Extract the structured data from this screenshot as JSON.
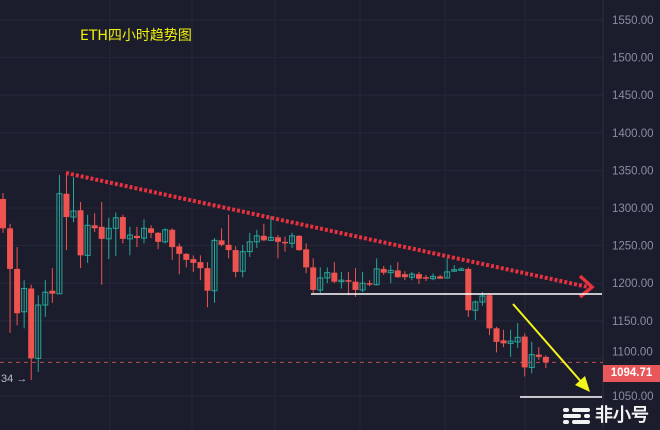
{
  "chart_data": {
    "type": "candlestick",
    "title": "ETH四小时趋势图",
    "ylim": [
      1030,
      1575
    ],
    "y_ticks": [
      "1050.00",
      "1100.00",
      "1150.00",
      "1200.00",
      "1250.00",
      "1300.00",
      "1350.00",
      "1400.00",
      "1450.00",
      "1500.00",
      "1550.00"
    ],
    "last_price": "1094.71",
    "left_label": ".34 →",
    "grid": true,
    "colors": {
      "up": "#26a69a",
      "down": "#ef5350",
      "background": "#1b1d2d",
      "trendline": "#e8313f",
      "arrow": "#f5f51a",
      "support": "#ffffff"
    },
    "candles": [
      [
        1312,
        1320,
        1267,
        1273
      ],
      [
        1273,
        1279,
        1134,
        1219
      ],
      [
        1219,
        1248,
        1144,
        1160
      ],
      [
        1162,
        1204,
        1140,
        1193
      ],
      [
        1193,
        1198,
        1071,
        1100
      ],
      [
        1100,
        1184,
        1082,
        1171
      ],
      [
        1171,
        1204,
        1155,
        1188
      ],
      [
        1190,
        1220,
        1174,
        1186
      ],
      [
        1186,
        1344,
        1186,
        1319
      ],
      [
        1319,
        1348,
        1244,
        1288
      ],
      [
        1288,
        1341,
        1281,
        1296
      ],
      [
        1297,
        1308,
        1220,
        1237
      ],
      [
        1237,
        1291,
        1227,
        1277
      ],
      [
        1277,
        1293,
        1268,
        1273
      ],
      [
        1275,
        1308,
        1198,
        1259
      ],
      [
        1259,
        1287,
        1232,
        1273
      ],
      [
        1273,
        1294,
        1236,
        1287
      ],
      [
        1288,
        1291,
        1253,
        1259
      ],
      [
        1259,
        1275,
        1237,
        1264
      ],
      [
        1263,
        1275,
        1248,
        1260
      ],
      [
        1260,
        1285,
        1253,
        1273
      ],
      [
        1273,
        1277,
        1260,
        1267
      ],
      [
        1267,
        1268,
        1245,
        1255
      ],
      [
        1255,
        1273,
        1253,
        1271
      ],
      [
        1271,
        1273,
        1231,
        1248
      ],
      [
        1249,
        1253,
        1212,
        1239
      ],
      [
        1239,
        1240,
        1221,
        1231
      ],
      [
        1232,
        1237,
        1215,
        1227
      ],
      [
        1228,
        1237,
        1204,
        1220
      ],
      [
        1220,
        1228,
        1168,
        1190
      ],
      [
        1190,
        1260,
        1174,
        1257
      ],
      [
        1257,
        1273,
        1249,
        1251
      ],
      [
        1251,
        1291,
        1233,
        1244
      ],
      [
        1244,
        1249,
        1208,
        1215
      ],
      [
        1216,
        1251,
        1208,
        1242
      ],
      [
        1242,
        1267,
        1235,
        1255
      ],
      [
        1255,
        1271,
        1247,
        1263
      ],
      [
        1263,
        1279,
        1256,
        1257
      ],
      [
        1257,
        1289,
        1256,
        1261
      ],
      [
        1261,
        1264,
        1233,
        1255
      ],
      [
        1255,
        1262,
        1242,
        1253
      ],
      [
        1253,
        1267,
        1247,
        1263
      ],
      [
        1263,
        1264,
        1243,
        1244
      ],
      [
        1245,
        1253,
        1213,
        1221
      ],
      [
        1221,
        1233,
        1187,
        1191
      ],
      [
        1191,
        1221,
        1187,
        1207
      ],
      [
        1207,
        1221,
        1200,
        1214
      ],
      [
        1214,
        1228,
        1200,
        1202
      ],
      [
        1203,
        1215,
        1193,
        1204
      ],
      [
        1204,
        1215,
        1184,
        1202
      ],
      [
        1202,
        1220,
        1182,
        1191
      ],
      [
        1191,
        1215,
        1188,
        1200
      ],
      [
        1200,
        1204,
        1196,
        1198
      ],
      [
        1198,
        1233,
        1197,
        1219
      ],
      [
        1219,
        1223,
        1211,
        1214
      ],
      [
        1214,
        1224,
        1200,
        1217
      ],
      [
        1217,
        1228,
        1207,
        1208
      ],
      [
        1212,
        1216,
        1204,
        1208
      ],
      [
        1208,
        1215,
        1204,
        1212
      ],
      [
        1212,
        1215,
        1199,
        1206
      ],
      [
        1208,
        1211,
        1203,
        1206
      ],
      [
        1206,
        1213,
        1204,
        1209
      ],
      [
        1209,
        1211,
        1206,
        1206
      ],
      [
        1207,
        1233,
        1206,
        1215
      ],
      [
        1217,
        1224,
        1215,
        1218
      ],
      [
        1218,
        1221,
        1217,
        1219
      ],
      [
        1219,
        1221,
        1155,
        1164
      ],
      [
        1164,
        1177,
        1151,
        1175
      ],
      [
        1175,
        1188,
        1170,
        1183
      ],
      [
        1184,
        1187,
        1131,
        1140
      ],
      [
        1140,
        1142,
        1108,
        1122
      ],
      [
        1124,
        1138,
        1115,
        1120
      ],
      [
        1120,
        1138,
        1102,
        1123
      ],
      [
        1122,
        1147,
        1114,
        1128
      ],
      [
        1129,
        1133,
        1076,
        1088
      ],
      [
        1088,
        1122,
        1080,
        1105
      ],
      [
        1105,
        1115,
        1098,
        1102
      ],
      [
        1102,
        1104,
        1087,
        1094.71
      ]
    ]
  },
  "watermark": "非小号"
}
